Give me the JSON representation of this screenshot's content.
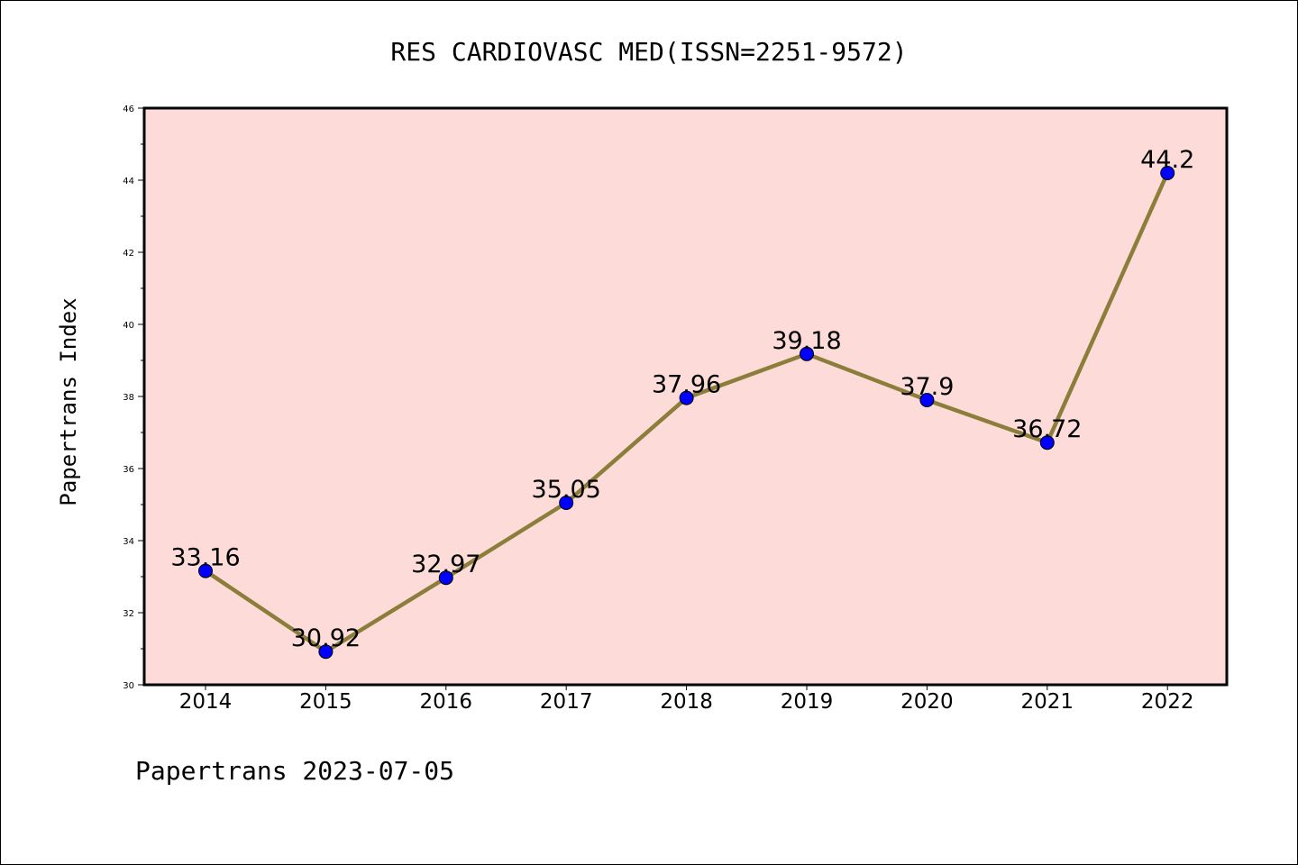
{
  "chart_data": {
    "type": "line",
    "title": "RES CARDIOVASC MED(ISSN=2251-9572)",
    "xlabel": "",
    "ylabel": "Papertrans Index",
    "categories": [
      "2014",
      "2015",
      "2016",
      "2017",
      "2018",
      "2019",
      "2020",
      "2021",
      "2022"
    ],
    "series": [
      {
        "values": [
          33.16,
          30.92,
          32.97,
          35.05,
          37.96,
          39.18,
          37.9,
          36.72,
          44.2
        ],
        "labels": [
          "33.16",
          "30.92",
          "32.97",
          "35.05",
          "37.96",
          "39.18",
          "37.9",
          "36.72",
          "44.2"
        ],
        "line_color": "#8b7d3a",
        "marker_color": "#0000ff"
      }
    ],
    "ylim": [
      30,
      46
    ],
    "yticks": [
      "30",
      "32",
      "34",
      "36",
      "38",
      "40",
      "42",
      "44",
      "46"
    ],
    "plot_background": "#fddbd9",
    "grid": false,
    "legend": false
  },
  "footer": "Papertrans 2023-07-05"
}
